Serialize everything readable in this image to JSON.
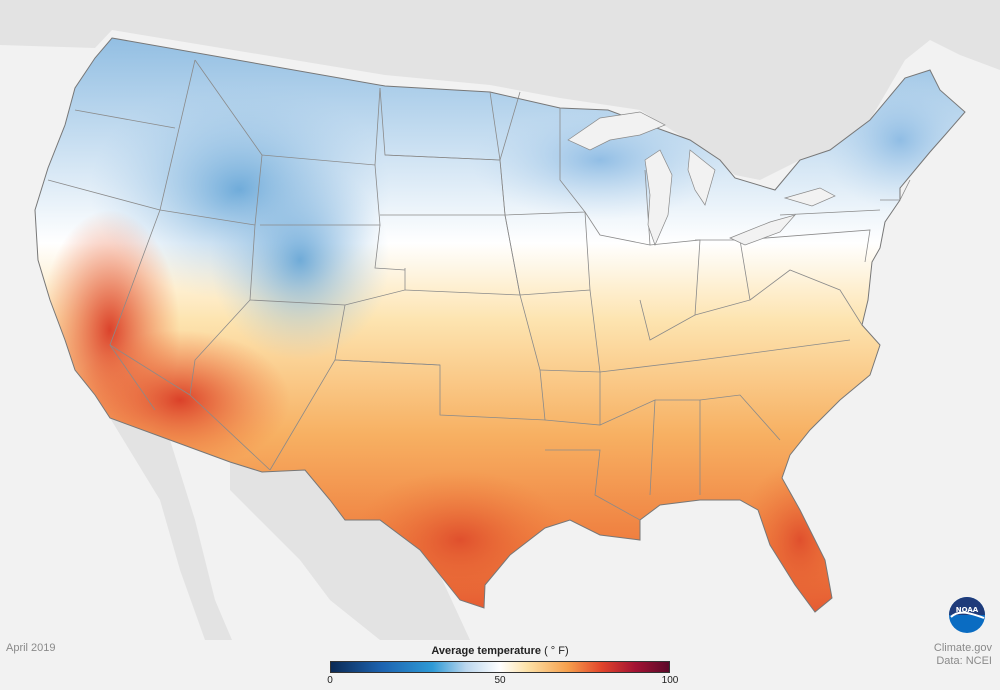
{
  "map_title": "Average temperature",
  "map_unit": "( ° F)",
  "footer": {
    "period": "April 2019",
    "credit": "Climate.gov",
    "source": "Data: NCEI"
  },
  "legend": {
    "ticks": [
      {
        "value": 0,
        "label": "0"
      },
      {
        "value": 50,
        "label": "50"
      },
      {
        "value": 100,
        "label": "100"
      }
    ],
    "range": [
      0,
      100
    ],
    "stops": [
      {
        "value": 0,
        "color": "#0b2a55"
      },
      {
        "value": 15,
        "color": "#1d63b0"
      },
      {
        "value": 30,
        "color": "#2e9ad6"
      },
      {
        "value": 40,
        "color": "#bcd7ee"
      },
      {
        "value": 50,
        "color": "#ffffff"
      },
      {
        "value": 58,
        "color": "#fde2a8"
      },
      {
        "value": 70,
        "color": "#f6a04d"
      },
      {
        "value": 80,
        "color": "#e2452b"
      },
      {
        "value": 90,
        "color": "#a31233"
      },
      {
        "value": 100,
        "color": "#5c0a2a"
      }
    ]
  },
  "map_colors": {
    "land_background": "#e3e3e3",
    "ocean": "#f2f2f2",
    "state_lines": "#7f7f7f"
  },
  "logo": {
    "name": "noaa-logo",
    "text": "NOAA"
  }
}
